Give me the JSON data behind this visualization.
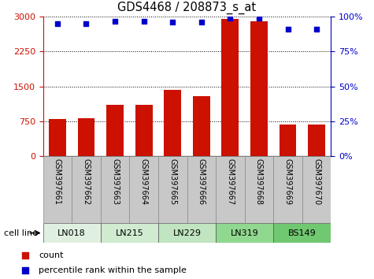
{
  "title": "GDS4468 / 208873_s_at",
  "samples": [
    "GSM397661",
    "GSM397662",
    "GSM397663",
    "GSM397664",
    "GSM397665",
    "GSM397666",
    "GSM397667",
    "GSM397668",
    "GSM397669",
    "GSM397670"
  ],
  "counts": [
    800,
    810,
    1100,
    1100,
    1430,
    1300,
    2950,
    2900,
    680,
    680
  ],
  "percentile_ranks": [
    95,
    95,
    97,
    97,
    96,
    96,
    99,
    99,
    91,
    91
  ],
  "cell_lines": [
    {
      "label": "LN018",
      "start": 0,
      "end": 2
    },
    {
      "label": "LN215",
      "start": 2,
      "end": 4
    },
    {
      "label": "LN229",
      "start": 4,
      "end": 6
    },
    {
      "label": "LN319",
      "start": 6,
      "end": 8
    },
    {
      "label": "BS149",
      "start": 8,
      "end": 10
    }
  ],
  "cell_colors": [
    "#e0f0e0",
    "#d0ebd0",
    "#c0e5c0",
    "#90d890",
    "#70c870"
  ],
  "bar_color": "#cc1100",
  "dot_color": "#0000cc",
  "left_axis_color": "#cc1100",
  "right_axis_color": "#0000cc",
  "ylim_left": [
    0,
    3000
  ],
  "ylim_right": [
    0,
    100
  ],
  "yticks_left": [
    0,
    750,
    1500,
    2250,
    3000
  ],
  "yticks_right": [
    0,
    25,
    50,
    75,
    100
  ],
  "grid_color": "black",
  "sample_box_color": "#c8c8c8",
  "cell_line_label": "cell line",
  "legend_count_label": "count",
  "legend_pct_label": "percentile rank within the sample"
}
